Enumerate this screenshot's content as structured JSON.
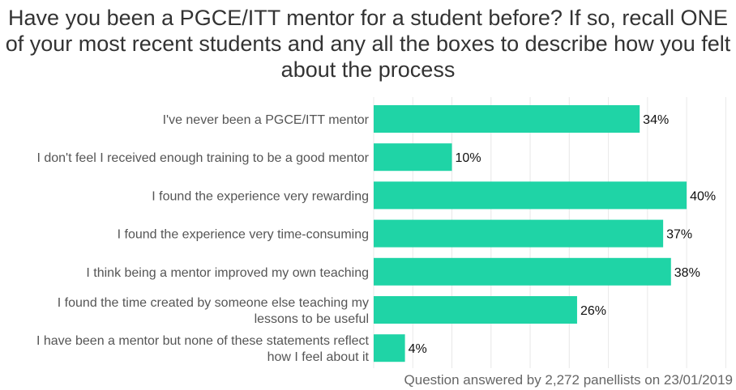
{
  "chart_data": {
    "type": "bar",
    "orientation": "horizontal",
    "title": "Have you been a PGCE/ITT mentor for a student before? If so, recall ONE of your most recent students and any all the boxes to describe how you felt about the process",
    "categories": [
      [
        "I've never been a PGCE/ITT mentor"
      ],
      [
        "I don't feel I received enough training to be a good mentor"
      ],
      [
        "I found the experience very rewarding"
      ],
      [
        "I found the experience very time-consuming"
      ],
      [
        "I think being a mentor improved my own teaching"
      ],
      [
        "I found the time created by someone else teaching my",
        "lessons to be useful"
      ],
      [
        "I have been a mentor but none of these statements reflect",
        "how I feel about it"
      ]
    ],
    "values": [
      34,
      10,
      40,
      37,
      38,
      26,
      4
    ],
    "value_labels": [
      "34%",
      "10%",
      "40%",
      "37%",
      "38%",
      "26%",
      "4%"
    ],
    "unit": "%",
    "xlim": [
      0,
      46
    ],
    "grid": true,
    "bar_color": "#1fd4a6",
    "grid_color": "#e8e8e8"
  },
  "footnote": "Question answered by 2,272 panellists on 23/01/2019"
}
